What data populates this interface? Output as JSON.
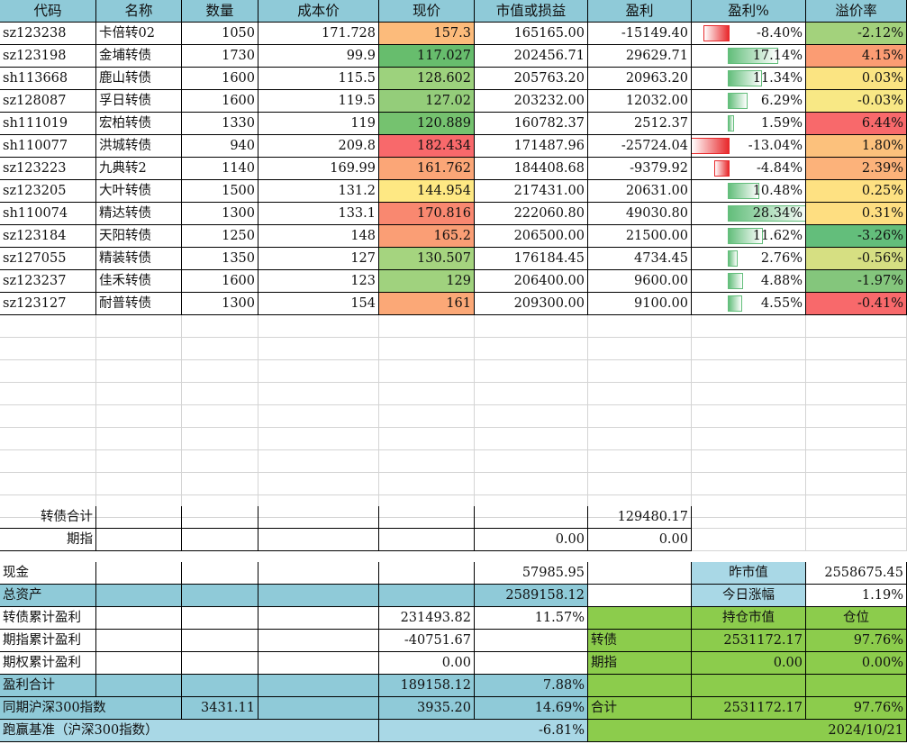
{
  "headers": [
    "代码",
    "名称",
    "数量",
    "成本价",
    "现价",
    "市值或损益",
    "盈利",
    "盈利%",
    "溢价率"
  ],
  "holdings": [
    {
      "code": "sz123238",
      "name": "卡倍转02",
      "qty": "1050",
      "cost": "171.728",
      "price": "157.3",
      "mv": "165165.00",
      "profit": "-15149.40",
      "pct": "-8.40%",
      "premium": "-2.12%",
      "price_bg": "#fcbb7b",
      "prem_bg": "#a3d27c",
      "pct_value": -8.4
    },
    {
      "code": "sz123198",
      "name": "金埔转债",
      "qty": "1730",
      "cost": "99.9",
      "price": "117.027",
      "mv": "202456.71",
      "profit": "29629.71",
      "pct": "17.14%",
      "premium": "4.15%",
      "price_bg": "#67bd6d",
      "prem_bg": "#fb9c73",
      "pct_value": 17.14
    },
    {
      "code": "sh113668",
      "name": "鹿山转债",
      "qty": "1600",
      "cost": "115.5",
      "price": "128.602",
      "mv": "205763.20",
      "profit": "20963.20",
      "pct": "11.34%",
      "premium": "0.03%",
      "price_bg": "#9dd27d",
      "prem_bg": "#fbe482",
      "pct_value": 11.34
    },
    {
      "code": "sz128087",
      "name": "孚日转债",
      "qty": "1600",
      "cost": "119.5",
      "price": "127.02",
      "mv": "203232.00",
      "profit": "12032.00",
      "pct": "6.29%",
      "premium": "-0.03%",
      "price_bg": "#94cd7a",
      "prem_bg": "#f8e885",
      "pct_value": 6.29
    },
    {
      "code": "sh111019",
      "name": "宏柏转债",
      "qty": "1330",
      "cost": "119",
      "price": "120.889",
      "mv": "160782.37",
      "profit": "2512.37",
      "pct": "1.59%",
      "premium": "6.44%",
      "price_bg": "#75c26f",
      "prem_bg": "#f8696b",
      "pct_value": 1.59
    },
    {
      "code": "sh110077",
      "name": "洪城转债",
      "qty": "940",
      "cost": "209.8",
      "price": "182.434",
      "mv": "171487.96",
      "profit": "-25724.04",
      "pct": "-13.04%",
      "premium": "1.80%",
      "price_bg": "#f8696b",
      "prem_bg": "#fcc17c",
      "pct_value": -13.04
    },
    {
      "code": "sz123223",
      "name": "九典转2",
      "qty": "1140",
      "cost": "169.99",
      "price": "161.762",
      "mv": "184408.68",
      "profit": "-9379.92",
      "pct": "-4.84%",
      "premium": "2.39%",
      "price_bg": "#fba677",
      "prem_bg": "#fcb27a",
      "pct_value": -4.84
    },
    {
      "code": "sz123205",
      "name": "大叶转债",
      "qty": "1500",
      "cost": "131.2",
      "price": "144.954",
      "mv": "217431.00",
      "profit": "20631.00",
      "pct": "10.48%",
      "premium": "0.25%",
      "price_bg": "#fee883",
      "prem_bg": "#fee182",
      "pct_value": 10.48
    },
    {
      "code": "sh110074",
      "name": "精达转债",
      "qty": "1300",
      "cost": "133.1",
      "price": "170.816",
      "mv": "222060.80",
      "profit": "49030.80",
      "pct": "28.34%",
      "premium": "0.31%",
      "price_bg": "#f98870",
      "prem_bg": "#fede81",
      "pct_value": 28.34
    },
    {
      "code": "sz123184",
      "name": "天阳转债",
      "qty": "1250",
      "cost": "148",
      "price": "165.2",
      "mv": "206500.00",
      "profit": "21500.00",
      "pct": "11.62%",
      "premium": "-3.26%",
      "price_bg": "#fa9e75",
      "prem_bg": "#63be7b",
      "pct_value": 11.62
    },
    {
      "code": "sz127055",
      "name": "精装转债",
      "qty": "1350",
      "cost": "127",
      "price": "130.507",
      "mv": "176184.45",
      "profit": "4734.45",
      "pct": "2.76%",
      "premium": "-0.56%",
      "price_bg": "#a5d47f",
      "prem_bg": "#d6df82",
      "pct_value": 2.76
    },
    {
      "code": "sz123237",
      "name": "佳禾转债",
      "qty": "1600",
      "cost": "123",
      "price": "129",
      "mv": "206400.00",
      "profit": "9600.00",
      "pct": "4.88%",
      "premium": "-1.97%",
      "price_bg": "#a0d27e",
      "prem_bg": "#84c67c",
      "pct_value": 4.88
    },
    {
      "code": "sz123127",
      "name": "耐普转债",
      "qty": "1300",
      "cost": "154",
      "price": "161",
      "mv": "209300.00",
      "profit": "9100.00",
      "pct": "4.55%",
      "premium": "-0.41%",
      "price_bg": "#fba877",
      "prem_bg": "#f8696b",
      "pct_value": 4.55
    }
  ],
  "totals": {
    "bond_total_label": "转债合计",
    "bond_total_profit": "129480.17",
    "futures_label": "期指",
    "futures_mv": "0.00",
    "futures_profit": "0.00"
  },
  "summary": {
    "cash_label": "现金",
    "cash_value": "57985.95",
    "total_assets_label": "总资产",
    "total_assets_value": "2589158.12",
    "prev_mv_label": "昨市值",
    "prev_mv_value": "2558675.45",
    "today_change_label": "今日涨幅",
    "today_change_value": "1.19%",
    "bond_cum_label": "转债累计盈利",
    "bond_cum_value": "231493.82",
    "bond_cum_pct": "11.57%",
    "futures_cum_label": "期指累计盈利",
    "futures_cum_value": "-40751.67",
    "options_cum_label": "期权累计盈利",
    "options_cum_value": "0.00",
    "profit_total_label": "盈利合计",
    "profit_total_value": "189158.12",
    "profit_total_pct": "7.88%",
    "index_label": "同期沪深300指数",
    "index_start": "3431.11",
    "index_now": "3935.20",
    "index_pct": "14.69%",
    "beat_label": "跑赢基准（沪深300指数）",
    "beat_pct": "-6.81%",
    "date": "2024/10/21",
    "position_header_mv": "持仓市值",
    "position_header_ratio": "仓位",
    "pos_bond_label": "转债",
    "pos_bond_mv": "2531172.17",
    "pos_bond_ratio": "97.76%",
    "pos_futures_label": "期指",
    "pos_futures_mv": "0.00",
    "pos_futures_ratio": "0.00%",
    "pos_total_label": "合计",
    "pos_total_mv": "2531172.17",
    "pos_total_ratio": "97.76%"
  },
  "colors": {
    "header_blue": "#8fcad8",
    "light_blue": "#a9d8e6",
    "green": "#8ccc4c",
    "bar_pos": "#63be7b",
    "bar_neg": "#e8292c"
  }
}
